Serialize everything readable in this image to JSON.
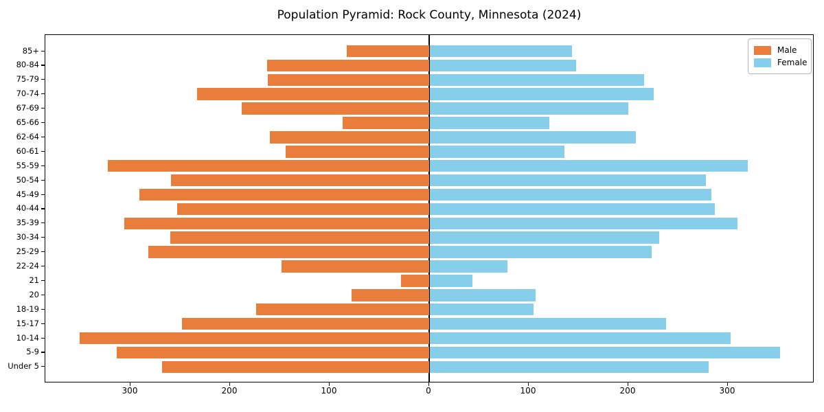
{
  "title": "Population Pyramid: Rock County, Minnesota (2024)",
  "colors": {
    "male": "#e87d3c",
    "female": "#87ceeb",
    "axis": "#000000",
    "legend_border": "#b7b7b7"
  },
  "legend": {
    "male_label": "Male",
    "female_label": "Female",
    "position": "upper right"
  },
  "chart_data": {
    "type": "bar",
    "subtype": "population-pyramid",
    "title": "Population Pyramid: Rock County, Minnesota (2024)",
    "xlabel": "",
    "ylabel": "",
    "grid": false,
    "legend_position": "upper right",
    "categories": [
      "85+",
      "80-84",
      "75-79",
      "70-74",
      "67-69",
      "65-66",
      "62-64",
      "60-61",
      "55-59",
      "50-54",
      "45-49",
      "40-44",
      "35-39",
      "30-34",
      "25-29",
      "22-24",
      "21",
      "20",
      "18-19",
      "15-17",
      "10-14",
      "5-9",
      "Under 5"
    ],
    "series": [
      {
        "name": "Male",
        "side": "left",
        "color": "#e87d3c",
        "values": [
          83,
          163,
          162,
          233,
          188,
          87,
          160,
          144,
          323,
          259,
          291,
          253,
          306,
          260,
          282,
          148,
          28,
          78,
          174,
          248,
          351,
          314,
          268
        ]
      },
      {
        "name": "Female",
        "side": "right",
        "color": "#87ceeb",
        "values": [
          143,
          147,
          215,
          225,
          199,
          120,
          207,
          135,
          319,
          277,
          283,
          286,
          309,
          230,
          223,
          78,
          43,
          106,
          104,
          237,
          302,
          352,
          280
        ]
      }
    ],
    "x_axis": {
      "tick_values": [
        -300,
        -200,
        -100,
        0,
        100,
        200,
        300
      ],
      "tick_labels": [
        "300",
        "200",
        "100",
        "0",
        "100",
        "200",
        "300"
      ],
      "xlim": [
        -386,
        386
      ]
    }
  }
}
